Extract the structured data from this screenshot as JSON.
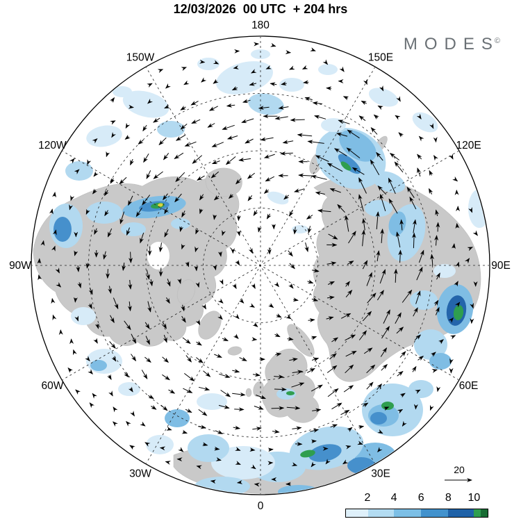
{
  "title": "12/03/2026  00 UTC  + 204 hrs",
  "logo": {
    "text": "MODES",
    "sup": "©"
  },
  "map": {
    "lon_labels": [
      "180",
      "150E",
      "120E",
      "90E",
      "60E",
      "30E",
      "0",
      "30W",
      "60W",
      "90W",
      "120W",
      "150W"
    ]
  },
  "legend": {
    "wind_ref_label": "20",
    "colorbar": {
      "tick_labels": [
        "2",
        "4",
        "6",
        "8",
        "10"
      ],
      "colors": [
        "#dff0fa",
        "#b3dcf2",
        "#7cbfe6",
        "#4292cd",
        "#1f62a8",
        "#2f9e4f",
        "#186b33"
      ]
    }
  }
}
